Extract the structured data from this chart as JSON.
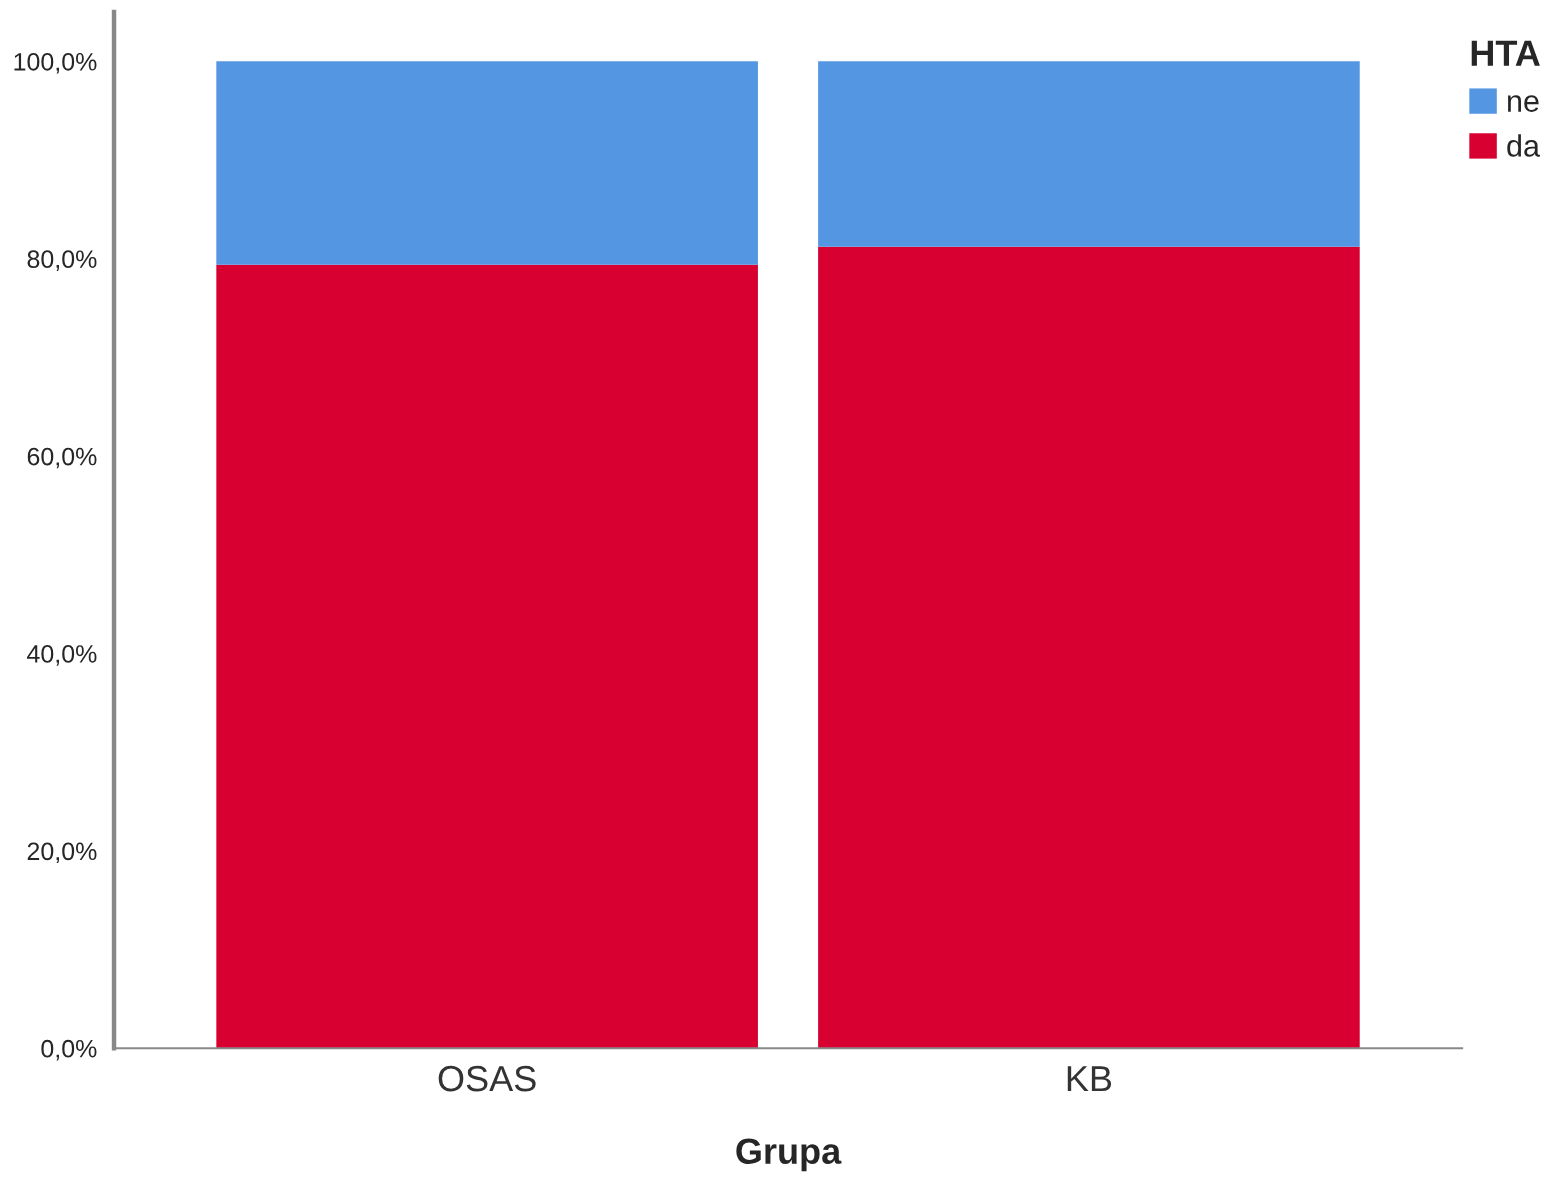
{
  "chart_data": {
    "type": "bar",
    "stacked": true,
    "xlabel": "Grupa",
    "legend_title": "HTA",
    "legend": "top right",
    "grid": false,
    "categories": [
      "OSAS",
      "KB"
    ],
    "series": [
      {
        "name": "da",
        "color": "#d70030",
        "values": [
          79.4,
          81.2
        ]
      },
      {
        "name": "ne",
        "color": "#5596e3",
        "values": [
          20.6,
          18.8
        ]
      }
    ],
    "ylim": [
      0,
      105
    ],
    "yticks": [
      {
        "value": 0,
        "label": "0,0%"
      },
      {
        "value": 20,
        "label": "20,0%"
      },
      {
        "value": 40,
        "label": "40,0%"
      },
      {
        "value": 60,
        "label": "60,0%"
      },
      {
        "value": 80,
        "label": "80,0%"
      },
      {
        "value": 100,
        "label": "100,0%"
      }
    ]
  }
}
